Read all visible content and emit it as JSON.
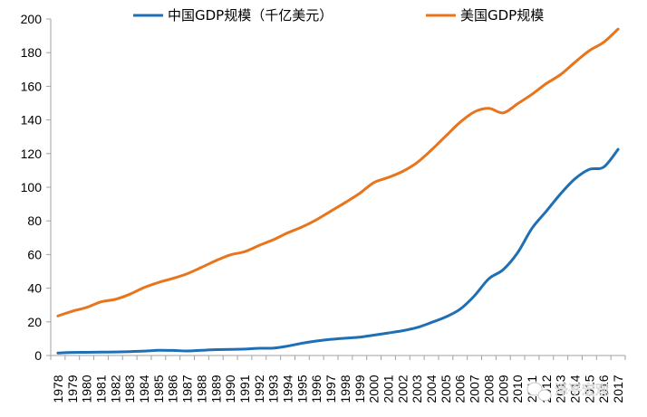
{
  "chart_data": {
    "type": "line",
    "title": "",
    "xlabel": "",
    "ylabel": "",
    "ylim": [
      0,
      200
    ],
    "yticks": [
      0,
      20,
      40,
      60,
      80,
      100,
      120,
      140,
      160,
      180,
      200
    ],
    "x": [
      "1978",
      "1979",
      "1980",
      "1981",
      "1982",
      "1983",
      "1984",
      "1985",
      "1986",
      "1987",
      "1988",
      "1989",
      "1990",
      "1991",
      "1992",
      "1993",
      "1994",
      "1995",
      "1996",
      "1997",
      "1998",
      "1999",
      "2000",
      "2001",
      "2002",
      "2003",
      "2004",
      "2005",
      "2006",
      "2007",
      "2008",
      "2009",
      "2010",
      "2011",
      "2012",
      "2013",
      "2014",
      "2015",
      "2016",
      "2017"
    ],
    "legend_position": "top",
    "series": [
      {
        "name": "中国GDP规模（千亿美元）",
        "color": "#1f6fb5",
        "values": [
          1.5,
          1.8,
          1.9,
          2.0,
          2.1,
          2.3,
          2.6,
          3.1,
          3.0,
          2.7,
          3.1,
          3.5,
          3.6,
          3.8,
          4.3,
          4.4,
          5.6,
          7.3,
          8.6,
          9.6,
          10.3,
          10.9,
          12.1,
          13.4,
          14.7,
          16.6,
          19.6,
          22.9,
          27.5,
          35.5,
          45.6,
          51.0,
          61.0,
          75.5,
          85.7,
          96.1,
          105.0,
          110.6,
          112.0,
          122.5
        ]
      },
      {
        "name": "美国GDP规模",
        "color": "#e8741c",
        "values": [
          23.5,
          26.3,
          28.6,
          31.9,
          33.4,
          36.4,
          40.4,
          43.4,
          45.8,
          48.6,
          52.4,
          56.4,
          59.8,
          61.7,
          65.4,
          68.8,
          72.9,
          76.4,
          80.7,
          85.8,
          90.9,
          96.3,
          102.8,
          105.8,
          109.4,
          114.6,
          122.1,
          130.4,
          138.6,
          144.8,
          146.9,
          144.2,
          149.6,
          155.2,
          161.6,
          167.0,
          174.3,
          181.2,
          186.2,
          194.0
        ]
      }
    ]
  },
  "watermark": {
    "text": "泽平宏观"
  }
}
